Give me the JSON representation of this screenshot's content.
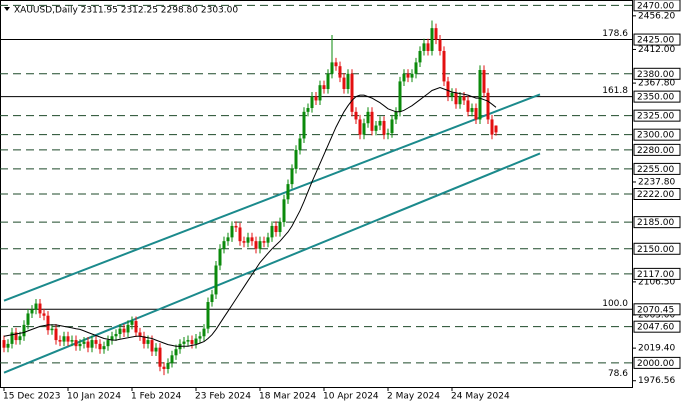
{
  "chart_data": {
    "type": "candlestick",
    "title": "XAUUSD,Daily  2311.95 2312.25 2298.80 2303.00",
    "categories": [
      "15 Dec 2023",
      null,
      null,
      null,
      null,
      null,
      null,
      null,
      null,
      null,
      null,
      null,
      null,
      null,
      null,
      null,
      "10 Jan 2024",
      null,
      null,
      null,
      null,
      null,
      null,
      null,
      null,
      null,
      null,
      null,
      null,
      null,
      null,
      null,
      "1 Feb 2024",
      null,
      null,
      null,
      null,
      null,
      null,
      null,
      null,
      null,
      null,
      null,
      null,
      null,
      null,
      null,
      "23 Feb 2024",
      null,
      null,
      null,
      null,
      null,
      null,
      null,
      null,
      null,
      null,
      null,
      null,
      null,
      null,
      null,
      "18 Mar 2024",
      null,
      null,
      null,
      null,
      null,
      null,
      null,
      null,
      null,
      null,
      null,
      null,
      null,
      null,
      null,
      "10 Apr 2024",
      null,
      null,
      null,
      null,
      null,
      null,
      null,
      null,
      null,
      null,
      null,
      null,
      null,
      null,
      null,
      "2 May 2024",
      null,
      null,
      null,
      null,
      null,
      null,
      null,
      null,
      null,
      null,
      null,
      null,
      null,
      null,
      null,
      "24 May 2024",
      null,
      null,
      null,
      null,
      null,
      null,
      null,
      null,
      null,
      null,
      null
    ],
    "open": [
      2030,
      2020,
      2025,
      2040,
      2030,
      2035,
      2050,
      2065,
      2070,
      2078,
      2065,
      2062,
      2043,
      2045,
      2030,
      2028,
      2035,
      2028,
      2030,
      2022,
      2025,
      2028,
      2020,
      2030,
      2025,
      2018,
      2022,
      2030,
      2035,
      2038,
      2045,
      2040,
      2050,
      2055,
      2040,
      2035,
      2025,
      2030,
      2015,
      2020,
      1995,
      1992,
      2000,
      2010,
      2018,
      2025,
      2028,
      2030,
      2025,
      2032,
      2035,
      2045,
      2080,
      2090,
      2128,
      2150,
      2160,
      2165,
      2180,
      2178,
      2160,
      2158,
      2165,
      2160,
      2150,
      2160,
      2158,
      2165,
      2180,
      2172,
      2185,
      2215,
      2235,
      2255,
      2280,
      2295,
      2330,
      2335,
      2350,
      2345,
      2365,
      2360,
      2380,
      2395,
      2390,
      2375,
      2360,
      2380,
      2330,
      2320,
      2300,
      2315,
      2330,
      2305,
      2312,
      2318,
      2300,
      2302,
      2320,
      2330,
      2370,
      2380,
      2375,
      2380,
      2395,
      2410,
      2420,
      2410,
      2440,
      2425,
      2410,
      2370,
      2350,
      2355,
      2340,
      2350,
      2345,
      2330,
      2335,
      2320,
      2385,
      2355,
      2320,
      2311.95
    ],
    "high": [
      2036,
      2031,
      2046,
      2046,
      2041,
      2056,
      2071,
      2076,
      2084,
      2084,
      2071,
      2068,
      2051,
      2051,
      2036,
      2041,
      2041,
      2036,
      2036,
      2031,
      2034,
      2034,
      2036,
      2036,
      2031,
      2028,
      2036,
      2041,
      2044,
      2051,
      2051,
      2056,
      2061,
      2061,
      2046,
      2041,
      2036,
      2036,
      2026,
      2026,
      2001,
      2006,
      2016,
      2024,
      2031,
      2034,
      2036,
      2036,
      2038,
      2041,
      2051,
      2086,
      2096,
      2134,
      2156,
      2166,
      2171,
      2186,
      2186,
      2184,
      2166,
      2171,
      2171,
      2166,
      2166,
      2166,
      2171,
      2186,
      2186,
      2191,
      2221,
      2241,
      2261,
      2286,
      2301,
      2336,
      2341,
      2356,
      2356,
      2371,
      2371,
      2386,
      2431,
      2401,
      2396,
      2381,
      2386,
      2386,
      2336,
      2326,
      2321,
      2336,
      2336,
      2318,
      2324,
      2324,
      2308,
      2326,
      2336,
      2376,
      2386,
      2386,
      2386,
      2401,
      2416,
      2426,
      2426,
      2450,
      2446,
      2431,
      2416,
      2376,
      2361,
      2361,
      2356,
      2356,
      2351,
      2341,
      2341,
      2391,
      2391,
      2361,
      2326,
      2312.25
    ],
    "low": [
      2014,
      2014,
      2019,
      2024,
      2024,
      2029,
      2044,
      2059,
      2064,
      2059,
      2056,
      2037,
      2037,
      2024,
      2022,
      2022,
      2022,
      2022,
      2016,
      2016,
      2019,
      2014,
      2014,
      2019,
      2012,
      2012,
      2016,
      2024,
      2029,
      2032,
      2034,
      2034,
      2044,
      2034,
      2029,
      2019,
      2019,
      2009,
      2009,
      1989,
      1984,
      1986,
      1994,
      2004,
      2012,
      2019,
      2022,
      2019,
      2019,
      2026,
      2029,
      2039,
      2074,
      2084,
      2122,
      2144,
      2154,
      2159,
      2172,
      2154,
      2152,
      2152,
      2154,
      2144,
      2144,
      2152,
      2152,
      2159,
      2166,
      2166,
      2179,
      2209,
      2229,
      2249,
      2274,
      2289,
      2324,
      2329,
      2339,
      2339,
      2354,
      2354,
      2374,
      2384,
      2369,
      2354,
      2354,
      2324,
      2314,
      2294,
      2294,
      2309,
      2299,
      2299,
      2306,
      2294,
      2294,
      2296,
      2314,
      2324,
      2364,
      2369,
      2369,
      2374,
      2389,
      2404,
      2404,
      2404,
      2419,
      2404,
      2364,
      2344,
      2344,
      2334,
      2334,
      2339,
      2324,
      2324,
      2314,
      2314,
      2349,
      2314,
      2294,
      2298.8
    ],
    "close": [
      2020,
      2025,
      2040,
      2030,
      2035,
      2050,
      2065,
      2070,
      2078,
      2065,
      2062,
      2043,
      2045,
      2030,
      2028,
      2035,
      2028,
      2030,
      2022,
      2025,
      2028,
      2020,
      2030,
      2025,
      2018,
      2022,
      2030,
      2035,
      2038,
      2045,
      2040,
      2050,
      2055,
      2040,
      2035,
      2025,
      2030,
      2015,
      2020,
      1995,
      1992,
      2000,
      2010,
      2018,
      2025,
      2028,
      2030,
      2025,
      2032,
      2035,
      2045,
      2080,
      2090,
      2128,
      2150,
      2160,
      2165,
      2180,
      2178,
      2160,
      2158,
      2165,
      2160,
      2150,
      2160,
      2158,
      2165,
      2180,
      2172,
      2185,
      2215,
      2235,
      2255,
      2280,
      2295,
      2330,
      2335,
      2350,
      2345,
      2365,
      2360,
      2380,
      2395,
      2390,
      2375,
      2360,
      2380,
      2330,
      2320,
      2300,
      2315,
      2330,
      2305,
      2312,
      2318,
      2300,
      2302,
      2320,
      2330,
      2370,
      2380,
      2375,
      2380,
      2395,
      2410,
      2420,
      2410,
      2440,
      2425,
      2410,
      2370,
      2350,
      2355,
      2340,
      2350,
      2345,
      2330,
      2335,
      2320,
      2385,
      2355,
      2320,
      2300,
      2303
    ],
    "ma": [
      2035,
      2036,
      2037,
      2038,
      2039,
      2040,
      2042,
      2044,
      2046,
      2048,
      2049,
      2050,
      2050,
      2050,
      2049,
      2048,
      2047,
      2046,
      2045,
      2044,
      2042,
      2040,
      2038,
      2036,
      2034,
      2032,
      2031,
      2030,
      2030,
      2031,
      2032,
      2033,
      2034,
      2035,
      2035,
      2034,
      2033,
      2032,
      2030,
      2028,
      2026,
      2024,
      2023,
      2022,
      2022,
      2022,
      2022,
      2023,
      2024,
      2026,
      2028,
      2032,
      2037,
      2044,
      2052,
      2060,
      2068,
      2076,
      2084,
      2092,
      2100,
      2108,
      2116,
      2124,
      2132,
      2138,
      2144,
      2150,
      2155,
      2160,
      2166,
      2172,
      2180,
      2190,
      2200,
      2212,
      2225,
      2238,
      2250,
      2262,
      2274,
      2286,
      2298,
      2310,
      2320,
      2330,
      2338,
      2345,
      2350,
      2352,
      2352,
      2350,
      2348,
      2345,
      2342,
      2338,
      2334,
      2332,
      2330,
      2330,
      2332,
      2335,
      2338,
      2342,
      2346,
      2350,
      2354,
      2358,
      2360,
      2362,
      2360,
      2358,
      2356,
      2355,
      2354,
      2353,
      2352,
      2350,
      2348,
      2348,
      2346,
      2344,
      2340,
      2336
    ],
    "up_color": "#0b8a0b",
    "down_color": "#e31010",
    "ma_color": "#000000",
    "xlim": [
      -1,
      157
    ],
    "ylim": [
      1967,
      2477
    ],
    "yticks": [
      {
        "value": 2456.2,
        "label": "2456.20"
      },
      {
        "value": 2412,
        "label": "2412.00"
      },
      {
        "value": 2367.8,
        "label": "2367.80"
      },
      {
        "value": 2237.8,
        "label": "2237.80"
      },
      {
        "value": 2106.5,
        "label": "2106.50"
      },
      {
        "value": 2063,
        "label": "2063.00"
      },
      {
        "value": 2019.4,
        "label": "2019.40"
      },
      {
        "value": 1976.56,
        "label": "1976.56"
      }
    ],
    "levels": [
      {
        "value": 2470,
        "label": "2470.00",
        "style": "dashed"
      },
      {
        "value": 2425,
        "label": "2425.00",
        "style": "solid"
      },
      {
        "value": 2380,
        "label": "2380.00",
        "style": "dashed"
      },
      {
        "value": 2350,
        "label": "2350.00",
        "style": "solid"
      },
      {
        "value": 2325,
        "label": "2325.00",
        "style": "dashed"
      },
      {
        "value": 2300,
        "label": "2300.00",
        "style": "dashed"
      },
      {
        "value": 2280,
        "label": "2280.00",
        "style": "dashed"
      },
      {
        "value": 2255,
        "label": "2255.00",
        "style": "dashed"
      },
      {
        "value": 2222,
        "label": "2222.00",
        "style": "dashed"
      },
      {
        "value": 2185,
        "label": "2185.00",
        "style": "dashed"
      },
      {
        "value": 2150,
        "label": "2150.00",
        "style": "dashed"
      },
      {
        "value": 2117,
        "label": "2117.00",
        "style": "dashed"
      },
      {
        "value": 2070.45,
        "label": "2070.45",
        "style": "solid"
      },
      {
        "value": 2047.6,
        "label": "2047.60",
        "style": "dashed"
      },
      {
        "value": 2000,
        "label": "2000.00",
        "style": "dashed"
      }
    ],
    "fib_labels": [
      {
        "value": 2425,
        "label": "178.6"
      },
      {
        "value": 2350,
        "label": "161.8"
      },
      {
        "value": 2070.45,
        "label": "100.0"
      },
      {
        "value": 1978,
        "label": "78.6"
      }
    ],
    "trendlines": [
      {
        "x": [
          0,
          134
        ],
        "y": [
          2081.8,
          2352.9
        ],
        "color": "#1b8a8c"
      },
      {
        "x": [
          0,
          134
        ],
        "y": [
          1987.1,
          2275.3
        ],
        "color": "#1b8a8c"
      }
    ]
  }
}
